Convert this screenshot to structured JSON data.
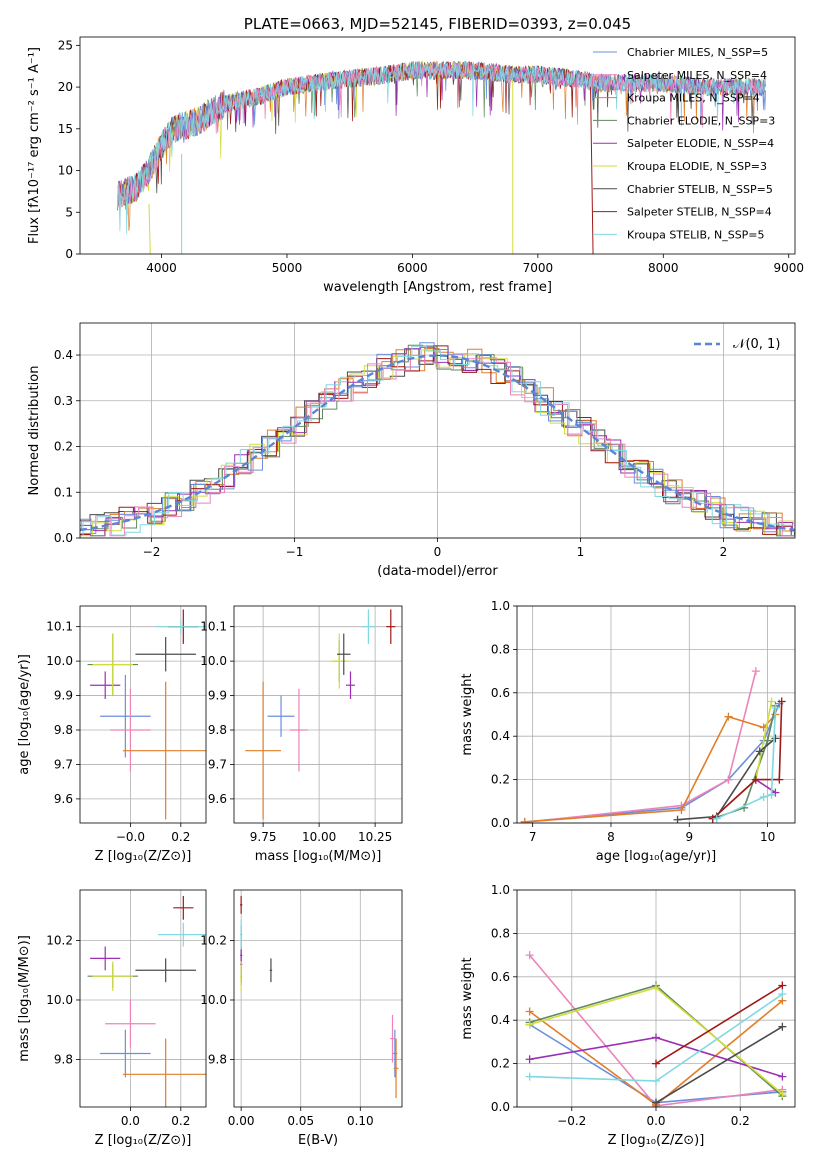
{
  "colors": {
    "c0": "#6b8fdc",
    "c1": "#ec84bb",
    "c2": "#e17e2a",
    "c3": "#5f8a5f",
    "c4": "#9b30b4",
    "c5": "#d2dd3c",
    "c6": "#4b4b4b",
    "c7": "#a01818",
    "c8": "#80d8e0"
  },
  "chart_data": [
    {
      "type": "line",
      "title": "PLATE=0663, MJD=52145, FIBERID=0393, z=0.045",
      "xlabel": "wavelength [Angstrom, rest frame]",
      "ylabel": "Flux [fλ10⁻¹⁷ erg cm⁻² s⁻¹ A⁻¹]",
      "xlim": [
        3350,
        9050
      ],
      "ylim": [
        0,
        26
      ],
      "xticks": [
        "4000",
        "5000",
        "6000",
        "7000",
        "8000",
        "9000"
      ],
      "yticks": [
        "0",
        "5",
        "10",
        "15",
        "20",
        "25"
      ],
      "grid": false,
      "legend_position": "right",
      "legend": [
        "Chabrier MILES, N_SSP=5",
        "Salpeter MILES, N_SSP=4",
        "Kroupa MILES, N_SSP=4",
        "Chabrier ELODIE, N_SSP=3",
        "Salpeter ELODIE, N_SSP=4",
        "Kroupa ELODIE, N_SSP=3",
        "Chabrier STELIB, N_SSP=5",
        "Salpeter STELIB, N_SSP=4",
        "Kroupa STELIB, N_SSP=5"
      ],
      "x_approx": [
        3650,
        3800,
        3900,
        4000,
        4100,
        4300,
        4500,
        4800,
        5000,
        5200,
        5500,
        5800,
        6000,
        6300,
        6500,
        6800,
        7000,
        7300,
        7500,
        7800,
        8000,
        8300,
        8500,
        8800
      ],
      "y_approx": [
        7,
        8,
        10,
        13,
        15,
        16,
        18,
        19,
        20,
        20.5,
        21,
        21.5,
        22,
        22,
        22,
        21.5,
        21.5,
        21,
        20.5,
        20.5,
        20.5,
        20,
        20,
        20
      ]
    },
    {
      "type": "histogram",
      "xlabel": "(data-model)/error",
      "ylabel": "Normed distribution",
      "xlim": [
        -2.5,
        2.5
      ],
      "ylim": [
        0,
        0.47
      ],
      "xticks": [
        "−2",
        "−1",
        "0",
        "1",
        "2"
      ],
      "yticks": [
        "0.0",
        "0.1",
        "0.2",
        "0.3",
        "0.4"
      ],
      "grid": true,
      "legend_position": "top-right",
      "legend": [
        "𝒩(0, 1)"
      ],
      "curve": "normal(0,1)"
    },
    {
      "type": "scatter",
      "xlabel": "Z [log₁₀(Z/Z⊙)]",
      "ylabel": "age  [log₁₀(age/yr)]",
      "xlim": [
        -0.2,
        0.3
      ],
      "ylim": [
        9.53,
        10.16
      ],
      "xticks": [
        "−0.0",
        "0.2"
      ],
      "yticks": [
        "9.6",
        "9.7",
        "9.8",
        "9.9",
        "10.0",
        "10.1"
      ],
      "grid": true
    },
    {
      "type": "scatter",
      "xlabel": "mass [log₁₀(M/M⊙)]",
      "xlim": [
        9.62,
        10.37
      ],
      "ylim": [
        9.53,
        10.16
      ],
      "xticks": [
        "9.75",
        "10.00",
        "10.25"
      ],
      "yticks": [
        "9.6",
        "9.7",
        "9.8",
        "9.9",
        "10.0",
        "10.1"
      ],
      "grid": true
    },
    {
      "type": "line",
      "xlabel": "age  [log₁₀(age/yr)]",
      "ylabel": "mass weight",
      "xlim": [
        6.8,
        10.35
      ],
      "ylim": [
        0,
        1
      ],
      "xticks": [
        "7",
        "8",
        "9",
        "10"
      ],
      "yticks": [
        "0.0",
        "0.2",
        "0.4",
        "0.6",
        "0.8",
        "1.0"
      ],
      "grid": true
    },
    {
      "type": "scatter",
      "xlabel": "Z [log₁₀(Z/Z⊙)]",
      "ylabel": "mass [log₁₀(M/M⊙)]",
      "xlim": [
        -0.2,
        0.3
      ],
      "ylim": [
        9.64,
        10.37
      ],
      "xticks": [
        "0.0",
        "0.2"
      ],
      "yticks": [
        "9.8",
        "10.0",
        "10.2"
      ],
      "grid": true
    },
    {
      "type": "scatter",
      "xlabel": "E(B-V)",
      "xlim": [
        -0.006,
        0.135
      ],
      "ylim": [
        9.64,
        10.37
      ],
      "xticks": [
        "0.00",
        "0.05",
        "0.10"
      ],
      "yticks": [
        "9.8",
        "10.0",
        "10.2"
      ],
      "grid": true
    },
    {
      "type": "line",
      "xlabel": "Z [log₁₀(Z/Z⊙)]",
      "ylabel": "mass weight",
      "xlim": [
        -0.33,
        0.33
      ],
      "ylim": [
        0,
        1
      ],
      "xticks": [
        "−0.2",
        "0.0",
        "0.2"
      ],
      "yticks": [
        "0.0",
        "0.2",
        "0.4",
        "0.6",
        "0.8",
        "1.0"
      ],
      "grid": true
    }
  ],
  "scatter_points": {
    "zage": [
      [
        -0.02,
        9.84,
        0.1,
        0.12
      ],
      [
        0.0,
        9.8,
        0.08,
        0.12
      ],
      [
        0.14,
        9.74,
        0.17,
        0.2
      ],
      [
        -0.07,
        9.99,
        0.1,
        0.09
      ],
      [
        -0.1,
        9.93,
        0.06,
        0.04
      ],
      [
        -0.07,
        9.99,
        0.08,
        0.09
      ],
      [
        0.14,
        10.02,
        0.12,
        0.05
      ],
      [
        0.21,
        10.1,
        0.06,
        0.05
      ],
      [
        0.2,
        10.1,
        0.1,
        0.02
      ]
    ],
    "massage": [
      [
        9.83,
        9.84,
        0.06,
        0.06
      ],
      [
        9.91,
        9.8,
        0.04,
        0.12
      ],
      [
        9.75,
        9.74,
        0.08,
        0.2
      ],
      [
        10.09,
        10.0,
        0.03,
        0.06
      ],
      [
        10.14,
        9.93,
        0.02,
        0.04
      ],
      [
        10.09,
        10.0,
        0.04,
        0.08
      ],
      [
        10.11,
        10.02,
        0.03,
        0.06
      ],
      [
        10.32,
        10.1,
        0.02,
        0.05
      ],
      [
        10.22,
        10.1,
        0.03,
        0.05
      ]
    ],
    "zmass": [
      [
        -0.02,
        9.82,
        0.1,
        0.08
      ],
      [
        0.0,
        9.92,
        0.1,
        0.08
      ],
      [
        0.14,
        9.75,
        0.17,
        0.12
      ],
      [
        -0.07,
        10.08,
        0.1,
        0.04
      ],
      [
        -0.1,
        10.14,
        0.06,
        0.04
      ],
      [
        -0.07,
        10.08,
        0.08,
        0.05
      ],
      [
        0.14,
        10.1,
        0.12,
        0.04
      ],
      [
        0.21,
        10.31,
        0.04,
        0.04
      ],
      [
        0.21,
        10.22,
        0.1,
        0.04
      ]
    ],
    "ebvmass": [
      [
        0.129,
        9.82,
        0.002,
        0.08
      ],
      [
        0.127,
        9.87,
        0.002,
        0.08
      ],
      [
        0.13,
        9.77,
        0.002,
        0.1
      ],
      [
        0.0,
        10.15,
        0.001,
        0.1
      ],
      [
        0.0,
        10.12,
        0.001,
        0.06
      ],
      [
        0.0,
        10.08,
        0.001,
        0.05
      ],
      [
        0.025,
        10.1,
        0.001,
        0.04
      ],
      [
        0.0,
        10.32,
        0.001,
        0.03
      ],
      [
        0.0,
        10.22,
        0.001,
        0.05
      ]
    ]
  },
  "weight_lines_age": [
    [
      [
        6.9,
        0.005
      ],
      [
        8.9,
        0.07
      ],
      [
        9.5,
        0.2
      ],
      [
        9.95,
        0.38
      ],
      [
        10.15,
        0.55
      ]
    ],
    [
      [
        6.9,
        0.003
      ],
      [
        8.9,
        0.08
      ],
      [
        9.5,
        0.2
      ],
      [
        9.85,
        0.7
      ]
    ],
    [
      [
        6.9,
        0.005
      ],
      [
        8.9,
        0.06
      ],
      [
        9.5,
        0.49
      ],
      [
        9.95,
        0.44
      ],
      [
        10.1,
        0.5
      ]
    ],
    [
      [
        9.3,
        0.02
      ],
      [
        9.7,
        0.07
      ],
      [
        10.0,
        0.38
      ],
      [
        10.1,
        0.54
      ]
    ],
    [
      [
        9.3,
        0.02
      ],
      [
        9.85,
        0.2
      ],
      [
        10.1,
        0.14
      ]
    ],
    [
      [
        9.3,
        0.02
      ],
      [
        9.85,
        0.2
      ],
      [
        10.05,
        0.56
      ]
    ],
    [
      [
        8.85,
        0.015
      ],
      [
        9.35,
        0.03
      ],
      [
        9.9,
        0.33
      ],
      [
        10.1,
        0.39
      ]
    ],
    [
      [
        9.3,
        0.02
      ],
      [
        9.85,
        0.2
      ],
      [
        10.15,
        0.2
      ],
      [
        10.18,
        0.56
      ]
    ],
    [
      [
        9.35,
        0.02
      ],
      [
        9.95,
        0.12
      ],
      [
        10.05,
        0.13
      ],
      [
        10.1,
        0.53
      ]
    ]
  ],
  "weight_lines_z": [
    [
      [
        -0.3,
        0.38
      ],
      [
        0.0,
        0.02
      ],
      [
        0.3,
        0.07
      ]
    ],
    [
      [
        -0.3,
        0.7
      ],
      [
        0.0,
        0.005
      ],
      [
        0.3,
        0.08
      ]
    ],
    [
      [
        -0.3,
        0.44
      ],
      [
        0.0,
        0.01
      ],
      [
        0.3,
        0.49
      ]
    ],
    [
      [
        -0.3,
        0.39
      ],
      [
        0.0,
        0.56
      ],
      [
        0.3,
        0.05
      ]
    ],
    [
      [
        -0.3,
        0.22
      ],
      [
        0.0,
        0.32
      ],
      [
        0.3,
        0.14
      ]
    ],
    [
      [
        -0.3,
        0.38
      ],
      [
        0.0,
        0.55
      ],
      [
        0.3,
        0.06
      ]
    ],
    [
      [
        0.0,
        0.02
      ],
      [
        0.3,
        0.37
      ]
    ],
    [
      [
        0.0,
        0.2
      ],
      [
        0.3,
        0.56
      ]
    ],
    [
      [
        -0.3,
        0.14
      ],
      [
        0.0,
        0.12
      ],
      [
        0.3,
        0.52
      ]
    ]
  ]
}
